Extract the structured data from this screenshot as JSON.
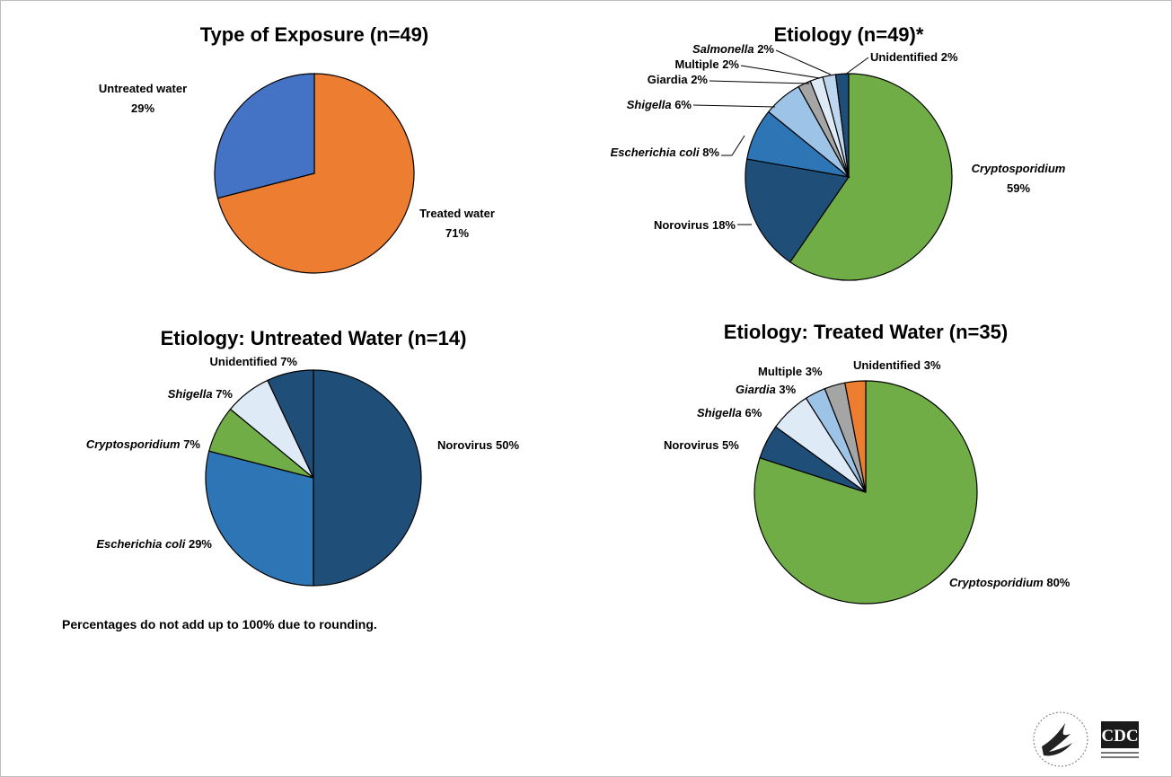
{
  "chart_data": [
    {
      "type": "pie",
      "title": "Type of Exposure (n=49)",
      "slices": [
        {
          "name": "Treated water",
          "value": 71,
          "label": "Treated water",
          "pct": "71%",
          "color": "#ED7D31"
        },
        {
          "name": "Untreated water",
          "value": 29,
          "label": "Untreated water",
          "pct": "29%",
          "color": "#4472C4"
        }
      ]
    },
    {
      "type": "pie",
      "title": "Etiology (n=49)*",
      "slices": [
        {
          "name": "Cryptosporidium",
          "value": 59,
          "label": "Cryptosporidium",
          "pct": "59%",
          "italic": true,
          "color": "#70AD47"
        },
        {
          "name": "Norovirus",
          "value": 18,
          "label": "Norovirus 18%",
          "italic": false,
          "color": "#1F4E79"
        },
        {
          "name": "Escherichia coli",
          "value": 8,
          "label": "Escherichia coli 8%",
          "italic": true,
          "color": "#2E75B6"
        },
        {
          "name": "Shigella",
          "value": 6,
          "label": "Shigella 6%",
          "italic": true,
          "color": "#9DC3E6"
        },
        {
          "name": "Giardia",
          "value": 2,
          "label": "Giardia 2%",
          "italic": false,
          "color": "#A5A5A5"
        },
        {
          "name": "Multiple",
          "value": 2,
          "label": "Multiple 2%",
          "italic": false,
          "color": "#DEEBF7"
        },
        {
          "name": "Salmonella",
          "value": 2,
          "label": "Salmonella 2%",
          "italic": true,
          "color": "#BDD7EE"
        },
        {
          "name": "Unidentified",
          "value": 2,
          "label": "Unidentified 2%",
          "italic": false,
          "color": "#1F4E79"
        }
      ]
    },
    {
      "type": "pie",
      "title": "Etiology: Untreated Water (n=14)",
      "slices": [
        {
          "name": "Norovirus",
          "value": 50,
          "label": "Norovirus 50%",
          "italic": false,
          "color": "#1F4E79"
        },
        {
          "name": "Escherichia coli",
          "value": 29,
          "label": "Escherichia coli 29%",
          "italic": true,
          "color": "#2E75B6"
        },
        {
          "name": "Cryptosporidium",
          "value": 7,
          "label": "Cryptosporidium 7%",
          "italic": true,
          "color": "#70AD47"
        },
        {
          "name": "Shigella",
          "value": 7,
          "label": "Shigella 7%",
          "italic": true,
          "color": "#DEEBF7"
        },
        {
          "name": "Unidentified",
          "value": 7,
          "label": "Unidentified 7%",
          "italic": false,
          "color": "#1F4E79"
        }
      ]
    },
    {
      "type": "pie",
      "title": "Etiology: Treated Water (n=35)",
      "slices": [
        {
          "name": "Cryptosporidium",
          "value": 80,
          "label": "Cryptosporidium 80%",
          "italic": true,
          "color": "#70AD47"
        },
        {
          "name": "Norovirus",
          "value": 5,
          "label": "Norovirus 5%",
          "italic": false,
          "color": "#1F4E79"
        },
        {
          "name": "Shigella",
          "value": 6,
          "label": "Shigella 6%",
          "italic": true,
          "color": "#DEEBF7"
        },
        {
          "name": "Giardia",
          "value": 3,
          "label": "Giardia 3%",
          "italic": true,
          "color": "#9DC3E6"
        },
        {
          "name": "Multiple",
          "value": 3,
          "label": "Multiple 3%",
          "italic": false,
          "color": "#A5A5A5"
        },
        {
          "name": "Unidentified",
          "value": 3,
          "label": "Unidentified 3%",
          "italic": false,
          "color": "#ED7D31"
        }
      ]
    }
  ],
  "footnote": "Percentages do not add up to 100% due to rounding.",
  "logos": {
    "hhs_icon": "hhs-eagle-seal",
    "cdc_text": "CDC"
  }
}
